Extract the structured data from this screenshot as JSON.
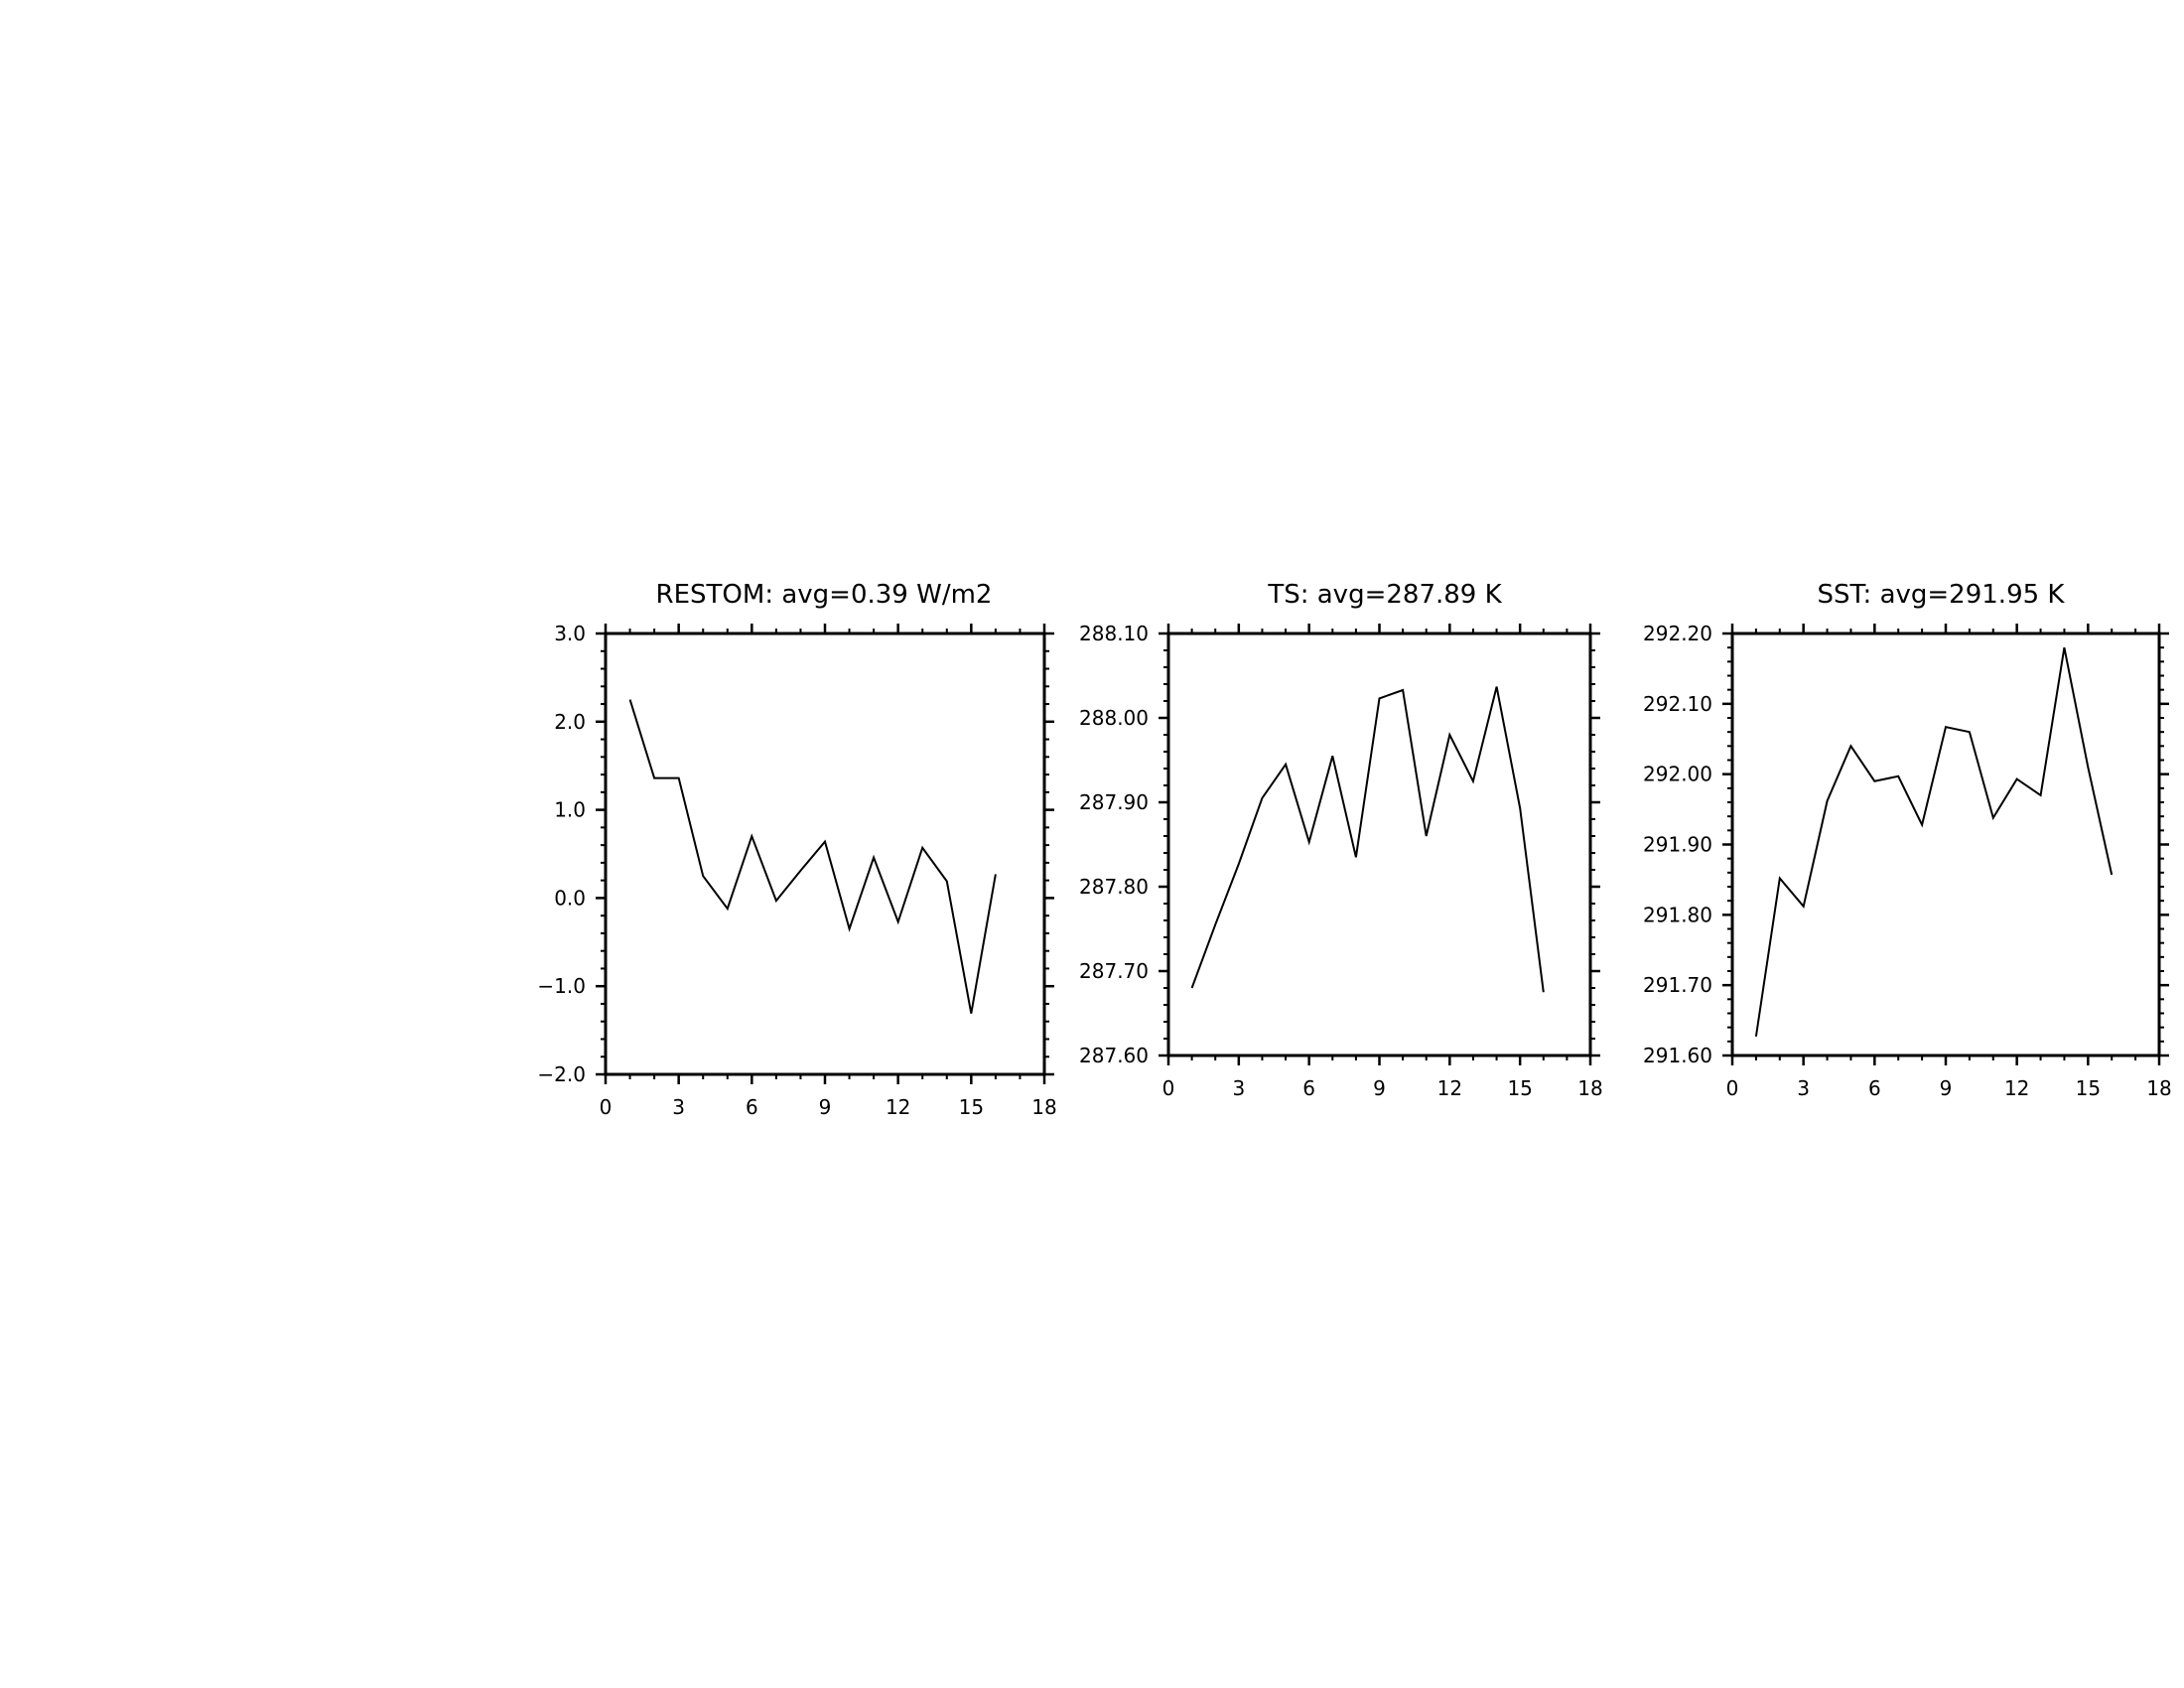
{
  "chart_data": [
    {
      "type": "line",
      "title": "RESTOM: avg=0.39 W/m2",
      "xlabel": "",
      "ylabel": "",
      "xlim": [
        0,
        18
      ],
      "ylim": [
        -2.0,
        3.0
      ],
      "xticks": [
        0,
        3,
        6,
        9,
        12,
        15,
        18
      ],
      "yticks": [
        -2.0,
        -1.0,
        0.0,
        1.0,
        2.0,
        3.0
      ],
      "xtick_labels": [
        "0",
        "3",
        "6",
        "9",
        "12",
        "15",
        "18"
      ],
      "ytick_labels": [
        "−2.0",
        "−1.0",
        "0.0",
        "1.0",
        "2.0",
        "3.0"
      ],
      "grid": false,
      "x": [
        1,
        2,
        3,
        4,
        5,
        6,
        7,
        8,
        9,
        10,
        11,
        12,
        13,
        14,
        15,
        16
      ],
      "series": [
        {
          "values": [
            2.25,
            1.36,
            1.36,
            0.25,
            -0.12,
            0.7,
            -0.03,
            0.31,
            0.64,
            -0.35,
            0.46,
            -0.27,
            0.57,
            0.19,
            -1.31,
            0.27
          ]
        }
      ],
      "line_color": "#000000"
    },
    {
      "type": "line",
      "title": "TS: avg=287.89  K",
      "xlabel": "",
      "ylabel": "",
      "xlim": [
        0,
        18
      ],
      "ylim": [
        287.6,
        288.1
      ],
      "xticks": [
        0,
        3,
        6,
        9,
        12,
        15,
        18
      ],
      "yticks": [
        287.6,
        287.7,
        287.8,
        287.9,
        288.0,
        288.1
      ],
      "xtick_labels": [
        "0",
        "3",
        "6",
        "9",
        "12",
        "15",
        "18"
      ],
      "ytick_labels": [
        "287.60",
        "287.70",
        "287.80",
        "287.90",
        "288.00",
        "288.10"
      ],
      "grid": false,
      "x": [
        1,
        2,
        3,
        4,
        5,
        6,
        7,
        8,
        9,
        10,
        11,
        12,
        13,
        14,
        15,
        16
      ],
      "series": [
        {
          "values": [
            287.68,
            287.755,
            287.827,
            287.905,
            287.945,
            287.853,
            287.955,
            287.835,
            288.023,
            288.033,
            287.86,
            287.98,
            287.925,
            288.037,
            287.893,
            287.675
          ]
        }
      ],
      "line_color": "#000000"
    },
    {
      "type": "line",
      "title": "SST: avg=291.95  K",
      "xlabel": "",
      "ylabel": "",
      "xlim": [
        0,
        18
      ],
      "ylim": [
        291.6,
        292.2
      ],
      "xticks": [
        0,
        3,
        6,
        9,
        12,
        15,
        18
      ],
      "yticks": [
        291.6,
        291.7,
        291.8,
        291.9,
        292.0,
        292.1,
        292.2
      ],
      "xtick_labels": [
        "0",
        "3",
        "6",
        "9",
        "12",
        "15",
        "18"
      ],
      "ytick_labels": [
        "291.60",
        "291.70",
        "291.80",
        "291.90",
        "292.00",
        "292.10",
        "292.20"
      ],
      "grid": false,
      "x": [
        1,
        2,
        3,
        4,
        5,
        6,
        7,
        8,
        9,
        10,
        11,
        12,
        13,
        14,
        15,
        16
      ],
      "series": [
        {
          "values": [
            291.627,
            291.852,
            291.812,
            291.962,
            292.04,
            291.99,
            291.997,
            291.928,
            292.067,
            292.06,
            291.938,
            291.993,
            291.97,
            292.18,
            292.01,
            291.857
          ]
        }
      ],
      "line_color": "#000000"
    }
  ]
}
